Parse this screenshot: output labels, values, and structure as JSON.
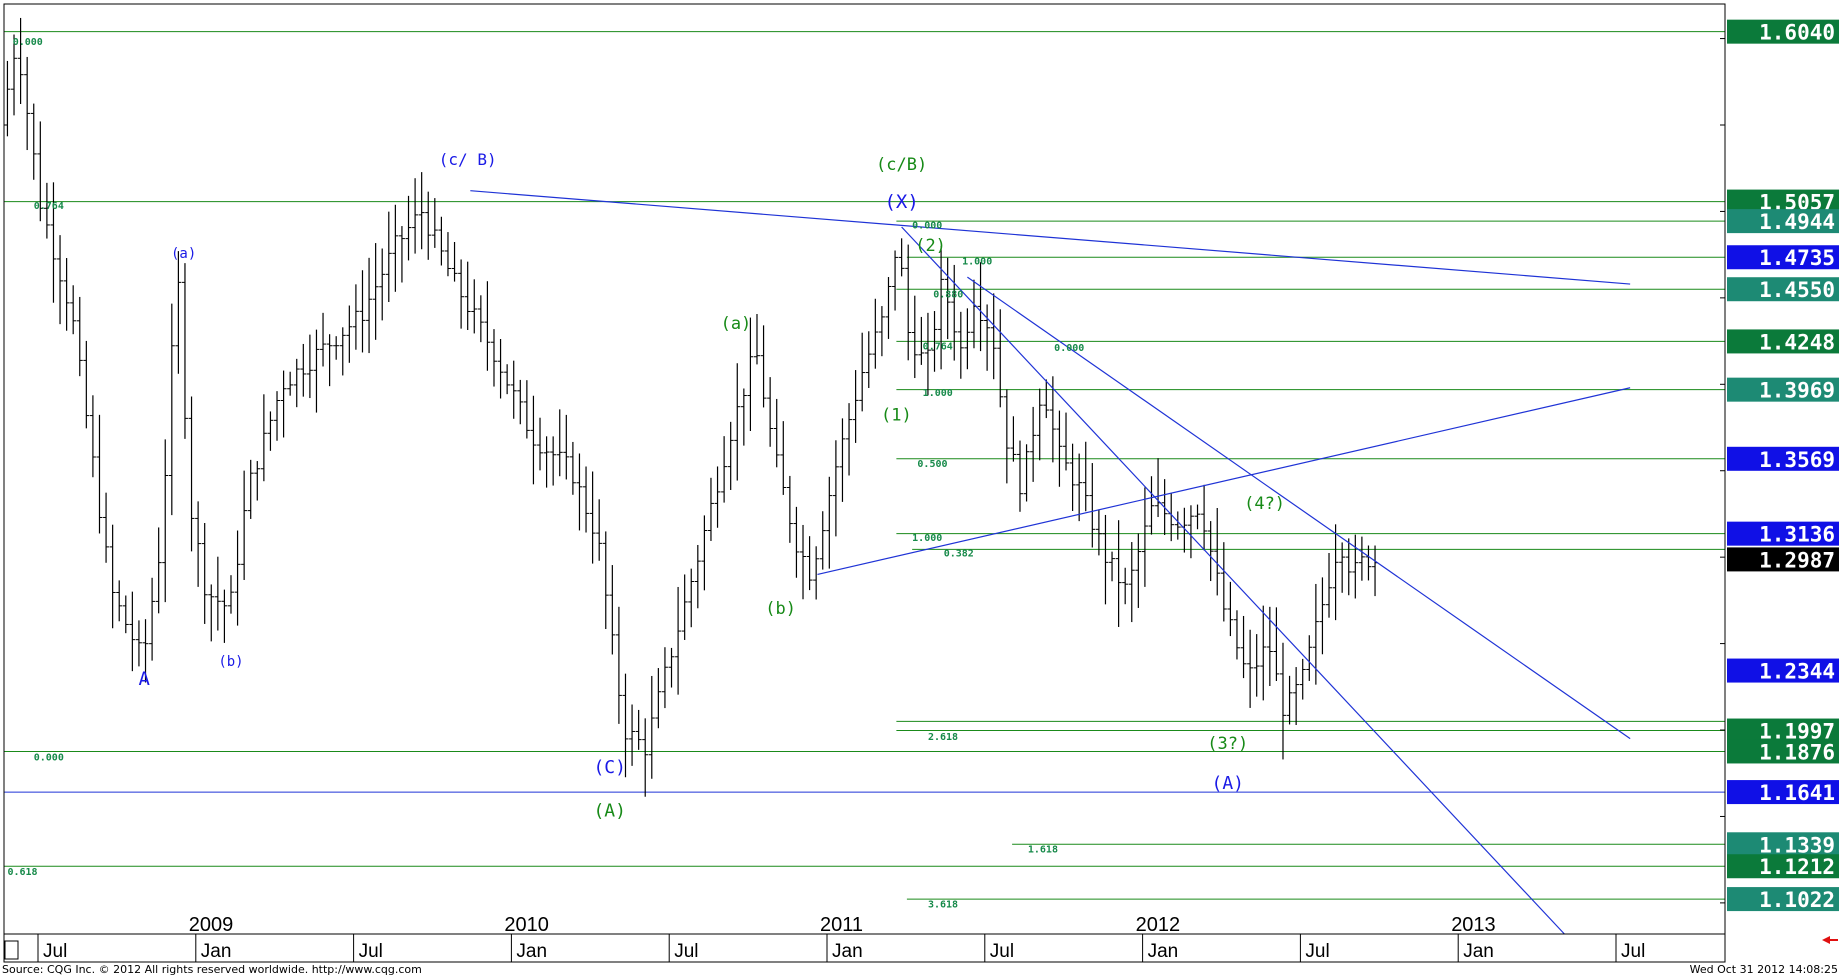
{
  "footer": {
    "source": "Source: CQG Inc. © 2012 All rights reserved worldwide. http://www.cqg.com",
    "timestamp": "Wed Oct 31 2012 14:08:25"
  },
  "colors": {
    "green_line": "#1a8a1a",
    "blue_line": "#1f33d6",
    "bar": "#000000",
    "tag_green": "#0b7a3a",
    "tag_teal": "#1d8a74",
    "tag_blue": "#1010e6",
    "tag_black": "#000000",
    "wave_green": "#178a17",
    "wave_blue": "#1a1ae6",
    "fib_text": "#178a4a"
  },
  "chart_data": {
    "type": "ohlc",
    "instrument": "",
    "y_range": [
      1.082,
      1.62
    ],
    "x_range_month_index": [
      0,
      60
    ],
    "x_axis": {
      "year_labels": [
        {
          "label": "2009",
          "month_index": 6
        },
        {
          "label": "2010",
          "month_index": 18
        },
        {
          "label": "2011",
          "month_index": 30
        },
        {
          "label": "2012",
          "month_index": 42
        },
        {
          "label": "2013",
          "month_index": 54
        }
      ],
      "month_labels": [
        {
          "label": "Jul",
          "month_index": 0
        },
        {
          "label": "Jan",
          "month_index": 6
        },
        {
          "label": "Jul",
          "month_index": 12
        },
        {
          "label": "Jan",
          "month_index": 18
        },
        {
          "label": "Jul",
          "month_index": 24
        },
        {
          "label": "Jan",
          "month_index": 30
        },
        {
          "label": "Jul",
          "month_index": 36
        },
        {
          "label": "Jan",
          "month_index": 42
        },
        {
          "label": "Jul",
          "month_index": 48
        },
        {
          "label": "Jan",
          "month_index": 54
        },
        {
          "label": "Jul",
          "month_index": 60
        }
      ]
    },
    "price_path": [
      {
        "t": -1.2,
        "p": 1.55
      },
      {
        "t": -0.6,
        "p": 1.6
      },
      {
        "t": 0.3,
        "p": 1.505
      },
      {
        "t": 1.5,
        "p": 1.44
      },
      {
        "t": 3.0,
        "p": 1.28
      },
      {
        "t": 4.2,
        "p": 1.24
      },
      {
        "t": 4.9,
        "p": 1.31
      },
      {
        "t": 5.5,
        "p": 1.47
      },
      {
        "t": 6.0,
        "p": 1.33
      },
      {
        "t": 6.6,
        "p": 1.28
      },
      {
        "t": 7.5,
        "p": 1.27
      },
      {
        "t": 8.2,
        "p": 1.34
      },
      {
        "t": 9.5,
        "p": 1.4
      },
      {
        "t": 11.0,
        "p": 1.42
      },
      {
        "t": 12.5,
        "p": 1.44
      },
      {
        "t": 13.8,
        "p": 1.48
      },
      {
        "t": 14.8,
        "p": 1.5
      },
      {
        "t": 16.0,
        "p": 1.46
      },
      {
        "t": 17.5,
        "p": 1.42
      },
      {
        "t": 19.0,
        "p": 1.37
      },
      {
        "t": 20.5,
        "p": 1.35
      },
      {
        "t": 21.5,
        "p": 1.31
      },
      {
        "t": 22.5,
        "p": 1.2
      },
      {
        "t": 23.3,
        "p": 1.19
      },
      {
        "t": 24.2,
        "p": 1.24
      },
      {
        "t": 25.3,
        "p": 1.3
      },
      {
        "t": 26.5,
        "p": 1.37
      },
      {
        "t": 27.5,
        "p": 1.42
      },
      {
        "t": 28.2,
        "p": 1.36
      },
      {
        "t": 29.0,
        "p": 1.31
      },
      {
        "t": 29.6,
        "p": 1.29
      },
      {
        "t": 30.5,
        "p": 1.35
      },
      {
        "t": 31.6,
        "p": 1.41
      },
      {
        "t": 32.4,
        "p": 1.44
      },
      {
        "t": 32.9,
        "p": 1.485
      },
      {
        "t": 33.3,
        "p": 1.43
      },
      {
        "t": 34.0,
        "p": 1.41
      },
      {
        "t": 34.6,
        "p": 1.46
      },
      {
        "t": 35.3,
        "p": 1.42
      },
      {
        "t": 35.8,
        "p": 1.45
      },
      {
        "t": 36.5,
        "p": 1.43
      },
      {
        "t": 37.0,
        "p": 1.37
      },
      {
        "t": 37.6,
        "p": 1.34
      },
      {
        "t": 38.4,
        "p": 1.4
      },
      {
        "t": 39.0,
        "p": 1.36
      },
      {
        "t": 39.8,
        "p": 1.34
      },
      {
        "t": 40.8,
        "p": 1.3
      },
      {
        "t": 41.6,
        "p": 1.28
      },
      {
        "t": 42.6,
        "p": 1.33
      },
      {
        "t": 43.6,
        "p": 1.32
      },
      {
        "t": 44.4,
        "p": 1.33
      },
      {
        "t": 45.3,
        "p": 1.27
      },
      {
        "t": 46.2,
        "p": 1.23
      },
      {
        "t": 47.0,
        "p": 1.25
      },
      {
        "t": 47.6,
        "p": 1.21
      },
      {
        "t": 48.3,
        "p": 1.23
      },
      {
        "t": 49.0,
        "p": 1.27
      },
      {
        "t": 49.7,
        "p": 1.31
      },
      {
        "t": 50.2,
        "p": 1.29
      },
      {
        "t": 50.7,
        "p": 1.3
      },
      {
        "t": 50.9,
        "p": 1.298
      }
    ],
    "horizontal_lines": [
      {
        "price": 1.604,
        "color": "green"
      },
      {
        "price": 1.5057,
        "color": "green"
      },
      {
        "price": 1.4944,
        "color": "green",
        "t_start": 32.6
      },
      {
        "price": 1.4735,
        "color": "green",
        "t_start": 33.0
      },
      {
        "price": 1.455,
        "color": "green",
        "t_start": 32.6
      },
      {
        "price": 1.4248,
        "color": "green",
        "t_start": 32.6
      },
      {
        "price": 1.3969,
        "color": "green",
        "t_start": 32.6
      },
      {
        "price": 1.3569,
        "color": "green",
        "t_start": 32.6
      },
      {
        "price": 1.3136,
        "color": "green",
        "t_start": 32.6
      },
      {
        "price": 1.3045,
        "color": "green",
        "t_start": 33.2
      },
      {
        "price": 1.205,
        "color": "green",
        "t_start": 32.6
      },
      {
        "price": 1.1997,
        "color": "green",
        "t_start": 32.6
      },
      {
        "price": 1.1876,
        "color": "green"
      },
      {
        "price": 1.1641,
        "color": "blue"
      },
      {
        "price": 1.1339,
        "color": "green",
        "t_start": 37.0
      },
      {
        "price": 1.1212,
        "color": "green"
      },
      {
        "price": 1.1022,
        "color": "green",
        "t_start": 33.0
      }
    ],
    "trend_lines": [
      {
        "from": [
          16.4,
          1.512
        ],
        "to": [
          60.5,
          1.458
        ]
      },
      {
        "from": [
          29.6,
          1.29
        ],
        "to": [
          60.5,
          1.398
        ]
      },
      {
        "from": [
          32.8,
          1.491
        ],
        "to": [
          58.0,
          1.082
        ]
      },
      {
        "from": [
          35.3,
          1.462
        ],
        "to": [
          60.5,
          1.195
        ]
      }
    ],
    "fib_labels": [
      {
        "text": "0.000",
        "t": -1.0,
        "price": 1.598
      },
      {
        "text": "0.764",
        "t": -0.2,
        "price": 1.503
      },
      {
        "text": "0.000",
        "t": -0.2,
        "price": 1.184
      },
      {
        "text": "0.618",
        "t": -1.2,
        "price": 1.118
      },
      {
        "text": "0.000",
        "t": 33.2,
        "price": 1.492
      },
      {
        "text": "1.000",
        "t": 35.1,
        "price": 1.471
      },
      {
        "text": "0.880",
        "t": 34.0,
        "price": 1.452
      },
      {
        "text": "0.764",
        "t": 33.6,
        "price": 1.422
      },
      {
        "text": "0.000",
        "t": 38.6,
        "price": 1.421
      },
      {
        "text": "1.000",
        "t": 33.6,
        "price": 1.395
      },
      {
        "text": "0.500",
        "t": 33.4,
        "price": 1.354
      },
      {
        "text": "1.000",
        "t": 33.2,
        "price": 1.311
      },
      {
        "text": "0.382",
        "t": 34.4,
        "price": 1.302
      },
      {
        "text": "2.618",
        "t": 33.8,
        "price": 1.196
      },
      {
        "text": "1.618",
        "t": 37.6,
        "price": 1.131
      },
      {
        "text": "3.618",
        "t": 33.8,
        "price": 1.099
      }
    ],
    "wave_labels": [
      {
        "text": "A",
        "t": 4.0,
        "price": 1.226,
        "color": "blue",
        "size": 19
      },
      {
        "text": "(a)",
        "t": 5.5,
        "price": 1.473,
        "color": "blue",
        "size": 14
      },
      {
        "text": "(b)",
        "t": 7.3,
        "price": 1.237,
        "color": "blue",
        "size": 14
      },
      {
        "text": "(c/ B)",
        "t": 16.3,
        "price": 1.527,
        "color": "blue",
        "size": 16
      },
      {
        "text": "(C)",
        "t": 21.7,
        "price": 1.175,
        "color": "blue",
        "size": 18
      },
      {
        "text": "(A)",
        "t": 21.7,
        "price": 1.15,
        "color": "green",
        "size": 18
      },
      {
        "text": "(a)",
        "t": 26.5,
        "price": 1.432,
        "color": "green",
        "size": 17
      },
      {
        "text": "(b)",
        "t": 28.2,
        "price": 1.267,
        "color": "green",
        "size": 17
      },
      {
        "text": "(c/B)",
        "t": 32.8,
        "price": 1.524,
        "color": "green",
        "size": 17
      },
      {
        "text": "(X)",
        "t": 32.8,
        "price": 1.502,
        "color": "blue",
        "size": 19
      },
      {
        "text": "(2)",
        "t": 33.9,
        "price": 1.477,
        "color": "green",
        "size": 17
      },
      {
        "text": "(1)",
        "t": 32.6,
        "price": 1.379,
        "color": "green",
        "size": 17
      },
      {
        "text": "(4?)",
        "t": 46.6,
        "price": 1.328,
        "color": "green",
        "size": 17
      },
      {
        "text": "(3?)",
        "t": 45.2,
        "price": 1.189,
        "color": "green",
        "size": 17
      },
      {
        "text": "(A)",
        "t": 45.2,
        "price": 1.166,
        "color": "blue",
        "size": 18
      }
    ],
    "price_tags": [
      {
        "text": "1.6040",
        "price": 1.604,
        "color": "green"
      },
      {
        "text": "1.5057",
        "price": 1.5057,
        "color": "green"
      },
      {
        "text": "1.4944",
        "price": 1.4944,
        "color": "teal"
      },
      {
        "text": "1.4735",
        "price": 1.4735,
        "color": "blue"
      },
      {
        "text": "1.4550",
        "price": 1.455,
        "color": "teal"
      },
      {
        "text": "1.4248",
        "price": 1.4248,
        "color": "green"
      },
      {
        "text": "1.3969",
        "price": 1.3969,
        "color": "teal"
      },
      {
        "text": "1.3569",
        "price": 1.3569,
        "color": "blue"
      },
      {
        "text": "1.3136",
        "price": 1.3136,
        "color": "blue"
      },
      {
        "text": "1.2987",
        "price": 1.2987,
        "color": "black"
      },
      {
        "text": "1.2344",
        "price": 1.2344,
        "color": "blue"
      },
      {
        "text": "1.1997",
        "price": 1.1997,
        "color": "green"
      },
      {
        "text": "1.1876",
        "price": 1.1876,
        "color": "green"
      },
      {
        "text": "1.1641",
        "price": 1.1641,
        "color": "blue"
      },
      {
        "text": "1.1339",
        "price": 1.1339,
        "color": "teal"
      },
      {
        "text": "1.1212",
        "price": 1.1212,
        "color": "green"
      },
      {
        "text": "1.1022",
        "price": 1.1022,
        "color": "teal"
      }
    ]
  }
}
